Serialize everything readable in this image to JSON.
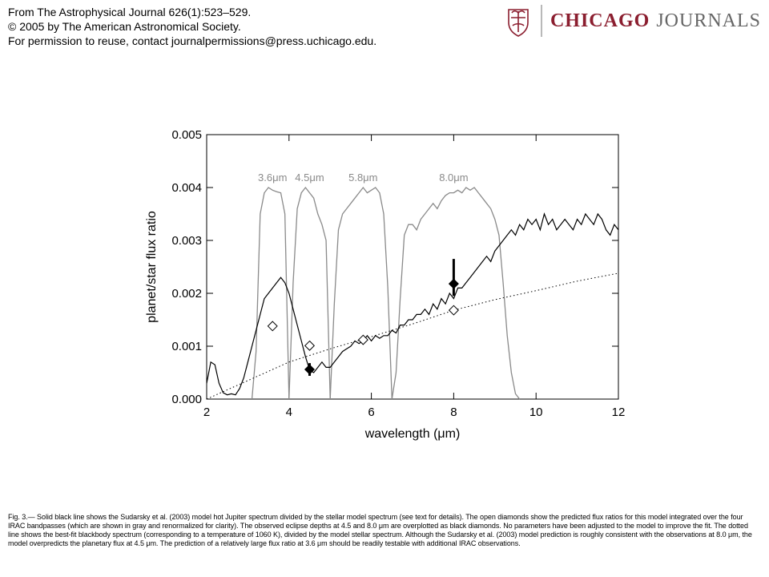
{
  "header": {
    "source_line": "From The Astrophysical Journal 626(1):523–529.",
    "copyright_line": "© 2005 by The American Astronomical Society.",
    "permission_line": "For permission to reuse, contact journalpermissions@press.uchicago.edu."
  },
  "branding": {
    "logo_text_primary": "CHICAGO",
    "logo_text_secondary": "JOURNALS",
    "colors": {
      "primary": "#8b1e2f",
      "secondary": "#666666"
    }
  },
  "chart_data": {
    "type": "line",
    "xlabel": "wavelength (μm)",
    "ylabel": "planet/star flux ratio",
    "xlim": [
      2,
      12
    ],
    "ylim": [
      0,
      0.005
    ],
    "x_ticks": [
      2,
      4,
      6,
      8,
      10,
      12
    ],
    "y_ticks": [
      0,
      0.001,
      0.002,
      0.003,
      0.004,
      0.005
    ],
    "x_tick_labels": [
      "2",
      "4",
      "6",
      "8",
      "10",
      "12"
    ],
    "y_tick_labels": [
      "0.000",
      "0.001",
      "0.002",
      "0.003",
      "0.004",
      "0.005"
    ],
    "band_labels": [
      {
        "label": "3.6μm",
        "x": 3.6
      },
      {
        "label": "4.5μm",
        "x": 4.5
      },
      {
        "label": "5.8μm",
        "x": 5.8
      },
      {
        "label": "8.0μm",
        "x": 8.0
      }
    ],
    "series": [
      {
        "style": "solid-black",
        "x": [
          2.0,
          2.1,
          2.2,
          2.3,
          2.4,
          2.5,
          2.6,
          2.7,
          2.8,
          2.9,
          3.0,
          3.1,
          3.2,
          3.3,
          3.4,
          3.5,
          3.6,
          3.7,
          3.8,
          3.9,
          4.0,
          4.1,
          4.2,
          4.3,
          4.4,
          4.5,
          4.6,
          4.7,
          4.8,
          4.9,
          5.0,
          5.1,
          5.2,
          5.3,
          5.4,
          5.5,
          5.6,
          5.7,
          5.8,
          5.9,
          6.0,
          6.1,
          6.2,
          6.3,
          6.4,
          6.5,
          6.6,
          6.7,
          6.8,
          6.9,
          7.0,
          7.1,
          7.2,
          7.3,
          7.4,
          7.5,
          7.6,
          7.7,
          7.8,
          7.9,
          8.0,
          8.1,
          8.2,
          8.3,
          8.4,
          8.5,
          8.6,
          8.7,
          8.8,
          8.9,
          9.0,
          9.1,
          9.2,
          9.3,
          9.4,
          9.5,
          9.6,
          9.7,
          9.8,
          9.9,
          10.0,
          10.1,
          10.2,
          10.3,
          10.4,
          10.5,
          10.6,
          10.7,
          10.8,
          10.9,
          11.0,
          11.1,
          11.2,
          11.3,
          11.4,
          11.5,
          11.6,
          11.7,
          11.8,
          11.9,
          12.0
        ],
        "values": [
          0.0003,
          0.0007,
          0.00065,
          0.0003,
          0.00012,
          8e-05,
          0.0001,
          8e-05,
          0.0002,
          0.0004,
          0.0007,
          0.001,
          0.0013,
          0.0016,
          0.0019,
          0.002,
          0.0021,
          0.0022,
          0.0023,
          0.0022,
          0.002,
          0.0017,
          0.0014,
          0.0011,
          0.0008,
          0.00055,
          0.0005,
          0.0006,
          0.0007,
          0.0006,
          0.0006,
          0.0007,
          0.0008,
          0.0009,
          0.00095,
          0.001,
          0.0011,
          0.00105,
          0.0011,
          0.0012,
          0.0011,
          0.0012,
          0.00115,
          0.0012,
          0.0012,
          0.0013,
          0.00125,
          0.0014,
          0.0014,
          0.0015,
          0.0015,
          0.0016,
          0.0016,
          0.0017,
          0.0016,
          0.0018,
          0.0017,
          0.0019,
          0.0018,
          0.002,
          0.0019,
          0.0021,
          0.0021,
          0.0022,
          0.0023,
          0.0024,
          0.0025,
          0.0026,
          0.0027,
          0.0026,
          0.0028,
          0.0029,
          0.003,
          0.0031,
          0.0032,
          0.0031,
          0.0033,
          0.0032,
          0.0034,
          0.0033,
          0.0034,
          0.0032,
          0.0035,
          0.0033,
          0.0034,
          0.0032,
          0.0033,
          0.0034,
          0.0033,
          0.0032,
          0.0034,
          0.0033,
          0.0035,
          0.0034,
          0.0033,
          0.0035,
          0.0034,
          0.0032,
          0.0031,
          0.0033,
          0.0032
        ]
      },
      {
        "style": "dotted-black",
        "x": [
          2.0,
          3.0,
          4.0,
          5.0,
          6.0,
          7.0,
          8.0,
          9.0,
          10.0,
          11.0,
          12.0
        ],
        "values": [
          0.0,
          0.00035,
          0.0007,
          0.00095,
          0.00118,
          0.00142,
          0.00168,
          0.00188,
          0.00205,
          0.00223,
          0.00238
        ]
      },
      {
        "style": "gray-band",
        "x": [
          3.1,
          3.2,
          3.3,
          3.4,
          3.5,
          3.6,
          3.7,
          3.8,
          3.9,
          4.0
        ],
        "values": [
          0.0,
          0.0009,
          0.0035,
          0.0039,
          0.004,
          0.00395,
          0.00392,
          0.0039,
          0.0035,
          0.0
        ]
      },
      {
        "style": "gray-band",
        "x": [
          4.0,
          4.1,
          4.2,
          4.3,
          4.4,
          4.5,
          4.6,
          4.7,
          4.8,
          4.9,
          5.0
        ],
        "values": [
          0.0,
          0.0022,
          0.0036,
          0.0039,
          0.004,
          0.0039,
          0.0038,
          0.0035,
          0.0033,
          0.003,
          0.0
        ]
      },
      {
        "style": "gray-band",
        "x": [
          5.0,
          5.1,
          5.2,
          5.3,
          5.4,
          5.5,
          5.6,
          5.7,
          5.8,
          5.9,
          6.0,
          6.1,
          6.2,
          6.3,
          6.4,
          6.5
        ],
        "values": [
          0.0,
          0.0018,
          0.0032,
          0.0035,
          0.0036,
          0.0037,
          0.0038,
          0.0039,
          0.004,
          0.0039,
          0.00395,
          0.004,
          0.0039,
          0.0035,
          0.0021,
          0.0
        ]
      },
      {
        "style": "gray-band",
        "x": [
          6.5,
          6.6,
          6.7,
          6.8,
          6.9,
          7.0,
          7.1,
          7.2,
          7.3,
          7.4,
          7.5,
          7.6,
          7.7,
          7.8,
          7.9,
          8.0,
          8.1,
          8.2,
          8.3,
          8.4,
          8.5,
          8.6,
          8.7,
          8.8,
          8.9,
          9.0,
          9.1,
          9.2,
          9.3,
          9.4,
          9.5,
          9.6
        ],
        "values": [
          0.0,
          0.0005,
          0.0019,
          0.0031,
          0.0033,
          0.0033,
          0.0032,
          0.0034,
          0.0035,
          0.0036,
          0.0037,
          0.0036,
          0.00375,
          0.00385,
          0.0039,
          0.0039,
          0.00395,
          0.0039,
          0.004,
          0.00395,
          0.004,
          0.0039,
          0.0038,
          0.0037,
          0.0036,
          0.0034,
          0.0031,
          0.0022,
          0.0012,
          0.0005,
          0.0001,
          0.0
        ]
      }
    ],
    "predicted_points": {
      "style": "open-diamond",
      "points": [
        {
          "x": 3.6,
          "y": 0.00138
        },
        {
          "x": 4.5,
          "y": 0.00101
        },
        {
          "x": 5.8,
          "y": 0.00112
        },
        {
          "x": 8.0,
          "y": 0.00168
        }
      ]
    },
    "observed_points": {
      "style": "filled-diamond",
      "points": [
        {
          "x": 4.5,
          "y": 0.00056,
          "err_low": 0.00044,
          "err_high": 0.00068
        },
        {
          "x": 8.0,
          "y": 0.00218,
          "err_low": 0.00195,
          "err_high": 0.00265
        }
      ]
    }
  },
  "caption": {
    "text": "Fig. 3.— Solid black line shows the Sudarsky et al. (2003) model hot Jupiter spectrum divided by the stellar model spectrum (see text for details). The open diamonds show the predicted flux ratios for this model integrated over the four IRAC bandpasses (which are shown in gray and renormalized for clarity). The observed eclipse depths at 4.5 and 8.0 μm are overplotted as black diamonds. No parameters have been adjusted to the model to improve the fit. The dotted line shows the best-fit blackbody spectrum (corresponding to a temperature of 1060 K), divided by the model stellar spectrum. Although the Sudarsky et al. (2003) model prediction is roughly consistent with the observations at 8.0 μm, the model overpredicts the planetary flux at 4.5 μm. The prediction of a relatively large flux ratio at 3.6 μm should be readily testable with additional IRAC observations."
  }
}
